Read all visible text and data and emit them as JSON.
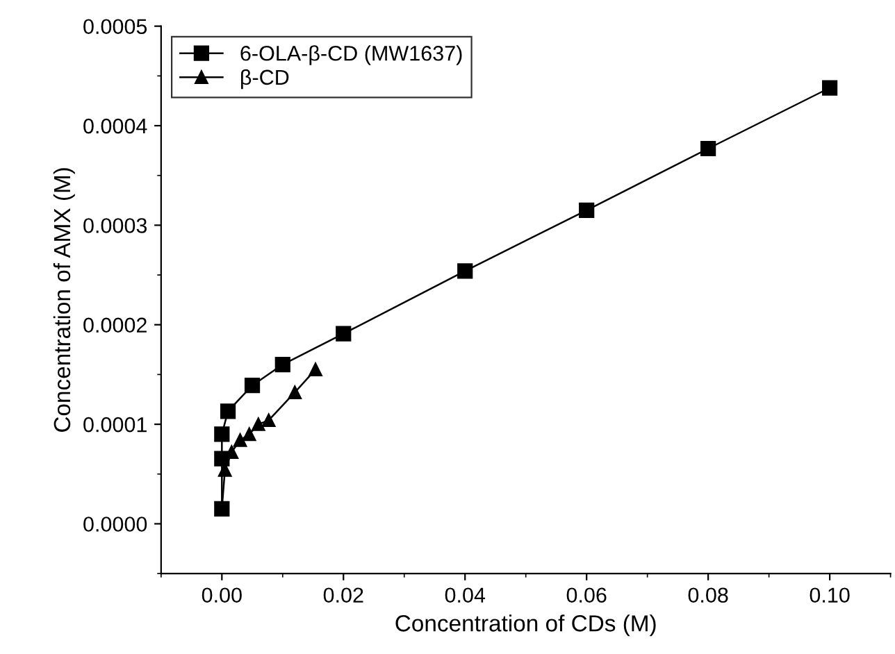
{
  "chart_data": {
    "type": "line",
    "xlabel": "Concentration of CDs (M)",
    "ylabel": "Concentration of AMX (M)",
    "series": [
      {
        "name": "6-OLA-β-CD (MW1637)",
        "color": "#000000",
        "marker": "square",
        "x": [
          0,
          0,
          0,
          0.001,
          0.005,
          0.01,
          0.02,
          0.04,
          0.06,
          0.08,
          0.1
        ],
        "values": [
          1.5e-05,
          6.54e-05,
          9e-05,
          0.000113,
          0.000139,
          0.00016,
          0.000191,
          0.000254,
          0.000315,
          0.000377,
          0.000438
        ]
      },
      {
        "name": "β-CD",
        "color": "#000000",
        "marker": "triangle",
        "x": [
          0,
          0.0005,
          0.0016,
          0.003,
          0.0045,
          0.006,
          0.0077,
          0.012,
          0.0154
        ],
        "values": [
          1.5e-05,
          5.4e-05,
          7.2e-05,
          8.4e-05,
          9e-05,
          0.0001,
          0.000104,
          0.000132,
          0.000155
        ]
      }
    ],
    "xlim": [
      -0.01,
      0.11
    ],
    "ylim": [
      -5e-05,
      0.0005
    ],
    "xticks": [
      {
        "value": 0,
        "label": "0.00"
      },
      {
        "value": 0.02,
        "label": "0.02"
      },
      {
        "value": 0.04,
        "label": "0.04"
      },
      {
        "value": 0.06,
        "label": "0.06"
      },
      {
        "value": 0.08,
        "label": "0.08"
      },
      {
        "value": 0.1,
        "label": "0.10"
      }
    ],
    "yticks": [
      {
        "value": 0,
        "label": "0.0000"
      },
      {
        "value": 0.0001,
        "label": "0.0001"
      },
      {
        "value": 0.0002,
        "label": "0.0002"
      },
      {
        "value": 0.0003,
        "label": "0.0003"
      },
      {
        "value": 0.0004,
        "label": "0.0004"
      },
      {
        "value": 0.0005,
        "label": "0.0005"
      }
    ],
    "grid": false,
    "legend": "top left",
    "line_style": "solid"
  }
}
